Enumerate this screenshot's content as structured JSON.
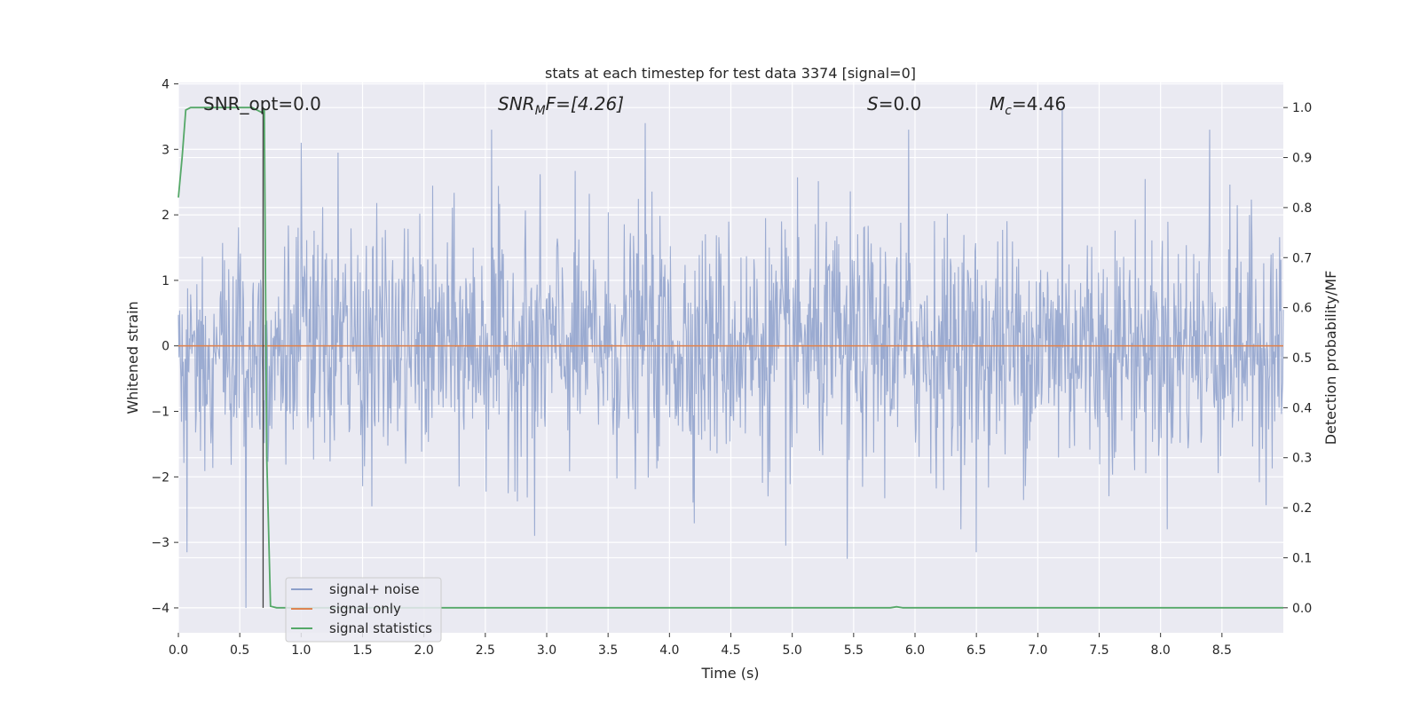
{
  "chart_data": {
    "type": "line",
    "title": "stats at each timestep for test data 3374 [signal=0]",
    "xlabel": "Time (s)",
    "ylabel_left": "Whitened strain",
    "ylabel_right": "Detection probability/MF",
    "xlim": [
      0,
      9.0
    ],
    "ylim_left": [
      -4.38,
      4.02
    ],
    "ylim_right": [
      -0.05,
      1.05
    ],
    "xticks": [
      "0.0",
      "0.5",
      "1.0",
      "1.5",
      "2.0",
      "2.5",
      "3.0",
      "3.5",
      "4.0",
      "4.5",
      "5.0",
      "5.5",
      "6.0",
      "6.5",
      "7.0",
      "7.5",
      "8.0",
      "8.5"
    ],
    "yticks_left": [
      "−4",
      "−3",
      "−2",
      "−1",
      "0",
      "1",
      "2",
      "3",
      "4"
    ],
    "yticks_right": [
      "0.0",
      "0.1",
      "0.2",
      "0.3",
      "0.4",
      "0.5",
      "0.6",
      "0.7",
      "0.8",
      "0.9",
      "1.0"
    ],
    "grid": true,
    "legend_position": "lower-left",
    "annotations": {
      "snr_opt": "SNR_opt=0.0",
      "snr_mf_sym": "SNR",
      "snr_mf_sub": "M",
      "snr_mf_rest": "F=[4.26]",
      "s_sym": "S",
      "s_rest": "=0.0",
      "mc_sym": "M",
      "mc_sub": "c",
      "mc_rest": "=4.46"
    },
    "series": [
      {
        "name": "signal+ noise",
        "color": "#8da0cb",
        "description_axis": "left",
        "noise_level": 1.0,
        "duration": 9.0,
        "peaks": [
          [
            0.07,
            -3.15
          ],
          [
            0.55,
            -4.0
          ],
          [
            1.0,
            3.1
          ],
          [
            1.3,
            2.95
          ],
          [
            2.55,
            3.3
          ],
          [
            2.9,
            -2.9
          ],
          [
            3.8,
            3.4
          ],
          [
            4.95,
            -3.05
          ],
          [
            5.45,
            -3.25
          ],
          [
            5.95,
            3.3
          ],
          [
            6.5,
            -3.15
          ],
          [
            7.2,
            3.65
          ],
          [
            8.4,
            3.3
          ]
        ]
      },
      {
        "name": "signal only",
        "color": "#dd8452",
        "axis": "left",
        "x": [
          0,
          9.0
        ],
        "y": [
          0,
          0
        ]
      },
      {
        "name": "signal statistics",
        "color": "#55a868",
        "axis": "right",
        "x": [
          0.0,
          0.03,
          0.06,
          0.1,
          0.2,
          0.4,
          0.6,
          0.68,
          0.7,
          0.72,
          0.75,
          0.8,
          1.0,
          5.8,
          5.85,
          5.9,
          9.0
        ],
        "y": [
          0.82,
          0.9,
          0.995,
          1.0,
          1.0,
          1.0,
          1.0,
          0.99,
          0.995,
          0.3,
          0.003,
          0.0,
          0.0,
          0.0,
          0.002,
          0.0,
          0.0
        ]
      }
    ],
    "marker_line": {
      "x": 0.69,
      "color": "#404040"
    },
    "colors": {
      "background": "#eaeaf2",
      "grid": "#ffffff"
    }
  }
}
